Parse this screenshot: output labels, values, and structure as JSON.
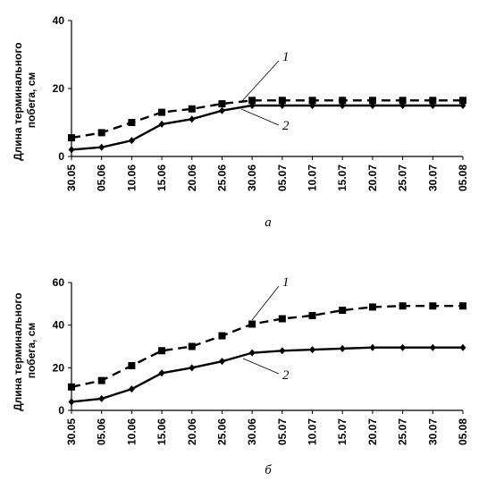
{
  "chart_data": [
    {
      "type": "line",
      "panel_label": "а",
      "ylabel_lines": [
        "Длина терминального",
        "побега, см"
      ],
      "ylim": [
        0,
        40
      ],
      "yticks": [
        0,
        20,
        40
      ],
      "categories": [
        "30.05",
        "05.06",
        "10.06",
        "15.06",
        "20.06",
        "25.06",
        "30.06",
        "05.07",
        "10.07",
        "15.07",
        "20.07",
        "25.07",
        "30.07",
        "05.08"
      ],
      "series": [
        {
          "name": "1",
          "style": "dashed",
          "marker": "square",
          "values": [
            5.5,
            7,
            10,
            13,
            14,
            15.5,
            16.5,
            16.5,
            16.5,
            16.5,
            16.5,
            16.5,
            16.5,
            16.5
          ]
        },
        {
          "name": "2",
          "style": "solid",
          "marker": "diamond",
          "values": [
            2,
            2.7,
            4.7,
            9.5,
            11,
            13.5,
            15,
            15,
            15,
            15,
            15,
            15,
            15,
            15
          ]
        }
      ],
      "annotations": [
        "1",
        "2"
      ]
    },
    {
      "type": "line",
      "panel_label": "б",
      "ylabel_lines": [
        "Длина терминального",
        "побега, см"
      ],
      "ylim": [
        0,
        60
      ],
      "yticks": [
        0,
        20,
        40,
        60
      ],
      "categories": [
        "30.05",
        "05.06",
        "10.06",
        "15.06",
        "20.06",
        "25.06",
        "30.06",
        "05.07",
        "10.07",
        "15.07",
        "20.07",
        "25.07",
        "30.07",
        "05.08"
      ],
      "series": [
        {
          "name": "1",
          "style": "dashed",
          "marker": "square",
          "values": [
            11,
            14,
            21,
            28,
            30,
            35,
            40.5,
            43,
            44.5,
            47,
            48.5,
            49,
            49,
            49
          ]
        },
        {
          "name": "2",
          "style": "solid",
          "marker": "diamond",
          "values": [
            4,
            5.5,
            10,
            17.5,
            20,
            23,
            27,
            28,
            28.5,
            29,
            29.5,
            29.5,
            29.5,
            29.5
          ]
        }
      ],
      "annotations": [
        "1",
        "2"
      ]
    }
  ]
}
